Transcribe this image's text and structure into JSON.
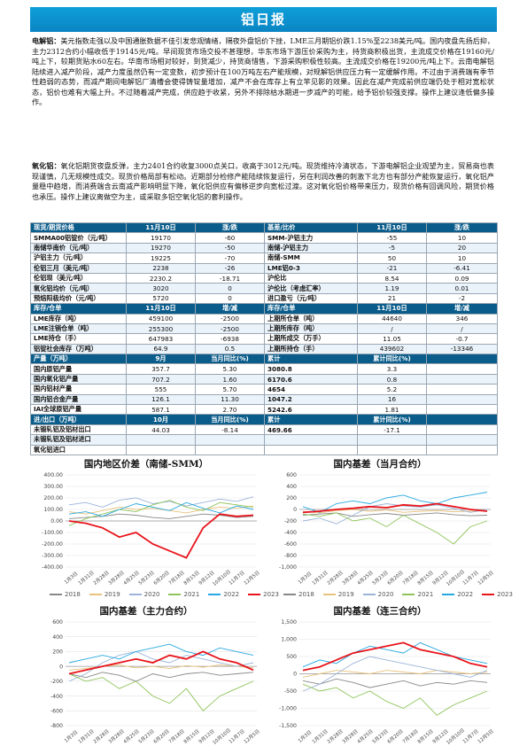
{
  "title": "铝日报",
  "paragraphs": [
    {
      "lead": "电解铝：",
      "body": "美元指数走强以及中国通胀数据不佳引发悲观情绪，隔夜外盘铝价下挫，LME三月期铝价跌1.15%至2238美元/吨。国内夜盘先扬后抑，主力2312合约小幅收低于19145元/吨。早间现货市场交投不甚理想，华东市场下游压价采购为主，持货商积极出货，主流成交价格在19160元/吨上下，较期货贴水60左右。华南市场相对较好，到货减少，持货商惜售，下游采购积极性较高。主流成交价格在19200元/吨上下。云南电解铝陆续进入减产阶段，减产力度虽然仍有一定变数，初步预计在100万吨左右产能规模，对规解铝供应压力有一定缓解作用。不过由于消费端有季节性趋弱的态势，而减产期间电解铝厂清槽会使得铸锭量增加，减产不会在库存上有立竿见影的效果。因此在减产完成前供应端仍处于相对宽松状态，铝价也难有大幅上升。不过随着减产完成，供应趋于收紧，另外不排除枯水期进一步减产的可能，给予铝价较强支撑。操作上建议逢低偏多操作。"
    },
    {
      "lead": "氧化铝：",
      "body": "氧化铝期货夜盘反弹，主力2401合约收复3000点关口，收高于3012元/吨。现货维持冷清状态，下游电解铝企业观望为主，贸易商也表现谨慎，几无规模性成交。现货价格局部有松动。近期部分检修产能陆续恢复运行，另在利润改善的刺激下北方也有部分产能恢复运行，氧化铝产量稳中趋增，而消费端含云南减产影响明显下降，氧化铝供应有偏移逆步向宽松过渡。这对氧化铝价格带来压力，现货价格有回调风险，期货价格也承压。操作上建议离做空为主，或采取多铝空氧化铝的套利操作。"
    }
  ],
  "table_rows": [
    {
      "hdr": true,
      "cells": [
        "现货/期货价格",
        "11月10日",
        "涨/跌",
        "基差/比价",
        "11月10日",
        "涨/跌"
      ]
    },
    {
      "cells": [
        "SMMA00铝锭价（元/吨）",
        "19170",
        "-60",
        "SMM-沪铝主力",
        "-55",
        "10"
      ]
    },
    {
      "cells": [
        "南储华南价（元/吨）",
        "19270",
        "-50",
        "南储-沪铝主力",
        "-5",
        "20"
      ]
    },
    {
      "cells": [
        "沪铝主力（元/吨）",
        "19225",
        "-70",
        "南储-SMM",
        "50",
        "10"
      ]
    },
    {
      "cells": [
        "伦铝三月（美元/吨）",
        "2238",
        "-26",
        "LME铝0-3",
        "-21",
        "-6.41"
      ]
    },
    {
      "cells": [
        "伦铝现（美元/吨）",
        "2230.2",
        "-18.71",
        "沪伦比",
        "8.54",
        "0.09"
      ]
    },
    {
      "cells": [
        "氧化铝均价（元/吨）",
        "3020",
        "0",
        "沪伦比（考虑汇率）",
        "1.19",
        "0.01"
      ]
    },
    {
      "cells": [
        "预焙阳极均价（元/吨）",
        "5720",
        "0",
        "进口盈亏（元/吨）",
        "21",
        "-2"
      ]
    },
    {
      "hdr": true,
      "cells": [
        "库存/仓单",
        "11月10日",
        "增/减",
        "库存/仓单",
        "11月10日",
        "增/减"
      ]
    },
    {
      "cells": [
        "LME库存（吨）",
        "459100",
        "-2500",
        "上期所仓单（吨）",
        "44640",
        "346"
      ]
    },
    {
      "cells": [
        "LME注销仓单（吨）",
        "255300",
        "-2500",
        "上期所库存（吨）",
        "/",
        "/"
      ]
    },
    {
      "cells": [
        "LME持仓（手）",
        "647983",
        "-6938",
        "上期所成交（万手）",
        "11.05",
        "-0.7"
      ]
    },
    {
      "cells": [
        "铝锭社会库存（万吨）",
        "64.9",
        "0.5",
        "上期所持仓（手）",
        "439602",
        "-13346"
      ]
    },
    {
      "hdr": true,
      "cells": [
        "产量（万吨）",
        "9月",
        "当月同比(%)",
        "累计",
        "累计同比(%)",
        ""
      ]
    },
    {
      "cells": [
        "国内原铝产量",
        "357.7",
        "5.30",
        "3080.8",
        "3.3",
        ""
      ]
    },
    {
      "cells": [
        "国内氧化铝产量",
        "707.2",
        "1.60",
        "6170.6",
        "0.8",
        ""
      ]
    },
    {
      "cells": [
        "国内铝材产量",
        "555",
        "5.70",
        "4654",
        "5.2",
        ""
      ]
    },
    {
      "cells": [
        "国内铝合金产量",
        "126.1",
        "11.30",
        "1047.2",
        "16",
        ""
      ]
    },
    {
      "cells": [
        "IAI全球原铝产量",
        "587.1",
        "2.70",
        "5242.6",
        "1.81",
        ""
      ]
    },
    {
      "hdr": true,
      "cells": [
        "进/出口（万吨）",
        "10月",
        "当月同比(%)",
        "累计",
        "累计同比(%)",
        ""
      ]
    },
    {
      "cells": [
        "未锻轧铝及铝材出口",
        "44.03",
        "-8.14",
        "469.66",
        "-17.1",
        ""
      ]
    },
    {
      "cells": [
        "未锻轧铝及铝材进口",
        "",
        "",
        "",
        "",
        ""
      ]
    },
    {
      "cells": [
        "氧化铝进口",
        "",
        "",
        "",
        "",
        ""
      ]
    }
  ],
  "series_colors": {
    "2018": "#888888",
    "2019": "#e8c27c",
    "2020": "#9bb4d8",
    "2021": "#8fc45b",
    "2022": "#27a8e0",
    "2023": "#e8141b"
  },
  "chart_data": [
    {
      "type": "line",
      "title": "国内地区价差（南储-SMM）",
      "ylim": [
        -400,
        400
      ],
      "yticks": [
        "400.00",
        "300.00",
        "200.00",
        "100.00",
        "0.00",
        "-100.00",
        "-200.00",
        "-300.00",
        "-400.00"
      ],
      "x_ticks": [
        "1月3日",
        "1月31日",
        "2月28日",
        "3月28日",
        "4月25日",
        "5月23日",
        "6月20日",
        "7月18日",
        "8月15日",
        "9月12日",
        "10月10日",
        "11月7日",
        "12月5日"
      ],
      "legend": [
        "2018",
        "2019",
        "2020",
        "2021",
        "2022",
        "2023"
      ],
      "series": [
        {
          "name": "2018",
          "values": [
            20,
            30,
            40,
            60,
            50,
            30,
            20,
            40,
            60,
            50,
            30,
            40
          ]
        },
        {
          "name": "2019",
          "values": [
            80,
            60,
            90,
            120,
            100,
            110,
            90,
            70,
            100,
            120,
            110,
            130
          ]
        },
        {
          "name": "2020",
          "values": [
            140,
            160,
            120,
            180,
            200,
            150,
            170,
            130,
            160,
            190,
            170,
            210
          ]
        },
        {
          "name": "2021",
          "values": [
            -40,
            20,
            60,
            100,
            80,
            140,
            180,
            120,
            90,
            160,
            140,
            120
          ]
        },
        {
          "name": "2022",
          "values": [
            60,
            80,
            40,
            100,
            150,
            120,
            90,
            160,
            110,
            70,
            130,
            100
          ]
        },
        {
          "name": "2023",
          "values": [
            0,
            -20,
            -60,
            -140,
            -100,
            -200,
            -260,
            -320,
            -60,
            60,
            40,
            50
          ]
        }
      ]
    },
    {
      "type": "line",
      "title": "国内基差（当月合约）",
      "ylim": [
        -1000,
        600
      ],
      "yticks": [
        "600",
        "400",
        "200",
        "0",
        "-200",
        "-400",
        "-600",
        "-800",
        "-1,000"
      ],
      "x_ticks": [
        "1月3日",
        "1月31日",
        "2月28日",
        "3月28日",
        "4月25日",
        "5月23日",
        "6月20日",
        "7月18日",
        "8月15日",
        "9月12日",
        "10月10日",
        "11月7日",
        "12月5日"
      ],
      "legend": [
        "2018",
        "2019",
        "2020",
        "2021",
        "2022",
        "2023"
      ],
      "series": [
        {
          "name": "2018",
          "values": [
            -100,
            -80,
            -60,
            -120,
            -90,
            -70,
            -100,
            -80,
            -60,
            -90,
            -110,
            -100
          ]
        },
        {
          "name": "2019",
          "values": [
            -40,
            -60,
            -20,
            0,
            -30,
            -10,
            -50,
            -30,
            -20,
            -40,
            -30,
            -20
          ]
        },
        {
          "name": "2020",
          "values": [
            -200,
            -150,
            -250,
            -100,
            50,
            100,
            60,
            40,
            80,
            20,
            -50,
            0
          ]
        },
        {
          "name": "2021",
          "values": [
            -80,
            -120,
            -60,
            -200,
            -150,
            -300,
            -100,
            -250,
            -400,
            -600,
            -300,
            -200
          ]
        },
        {
          "name": "2022",
          "values": [
            50,
            -50,
            100,
            150,
            100,
            200,
            250,
            150,
            100,
            200,
            250,
            300
          ]
        },
        {
          "name": "2023",
          "values": [
            -50,
            -30,
            0,
            20,
            50,
            30,
            80,
            60,
            100,
            50,
            0,
            -30
          ]
        }
      ]
    },
    {
      "type": "line",
      "title": "国内基差（主力合约）",
      "ylim": [
        -800,
        600
      ],
      "yticks": [
        "600",
        "400",
        "200",
        "0",
        "-200",
        "-400",
        "-600",
        "-800"
      ],
      "x_ticks": [
        "1月3日",
        "1月31日",
        "2月28日",
        "3月28日",
        "4月25日",
        "5月23日",
        "6月20日",
        "7月18日",
        "8月15日",
        "9月12日",
        "10月10日",
        "11月7日",
        "12月5日"
      ],
      "legend": [],
      "series": [
        {
          "name": "2018",
          "values": [
            -100,
            -150,
            -80,
            -120,
            -200,
            -100,
            -150,
            -100,
            -80,
            -120,
            -100,
            -80
          ]
        },
        {
          "name": "2019",
          "values": [
            -50,
            -30,
            0,
            20,
            -20,
            0,
            -30,
            10,
            -10,
            20,
            0,
            -20
          ]
        },
        {
          "name": "2020",
          "values": [
            -200,
            -100,
            50,
            150,
            200,
            100,
            50,
            150,
            100,
            50,
            0,
            50
          ]
        },
        {
          "name": "2021",
          "values": [
            -100,
            -200,
            -150,
            -300,
            -200,
            -400,
            -500,
            -300,
            -600,
            -400,
            -300,
            -200
          ]
        },
        {
          "name": "2022",
          "values": [
            50,
            100,
            150,
            100,
            200,
            250,
            300,
            200,
            150,
            250,
            200,
            150
          ]
        },
        {
          "name": "2023",
          "values": [
            -100,
            -50,
            0,
            50,
            100,
            50,
            150,
            100,
            200,
            100,
            50,
            -50
          ]
        }
      ]
    },
    {
      "type": "line",
      "title": "国内基差（连三合约）",
      "ylim": [
        -1500,
        1500
      ],
      "yticks": [
        "1,500",
        "1,000",
        "500",
        "0",
        "-500",
        "-1,000",
        "-1,500"
      ],
      "x_ticks": [
        "1月3日",
        "1月31日",
        "2月28日",
        "3月28日",
        "4月25日",
        "5月23日",
        "6月20日",
        "7月18日",
        "8月15日",
        "9月12日",
        "10月10日",
        "11月7日",
        "12月5日"
      ],
      "legend": [],
      "series": [
        {
          "name": "2018",
          "values": [
            -200,
            -300,
            -150,
            -250,
            -400,
            -300,
            -200,
            -350,
            -250,
            -300,
            -200,
            -250
          ]
        },
        {
          "name": "2019",
          "values": [
            -100,
            0,
            100,
            50,
            0,
            100,
            50,
            0,
            100,
            50,
            0,
            50
          ]
        },
        {
          "name": "2020",
          "values": [
            -500,
            -300,
            0,
            300,
            500,
            400,
            300,
            200,
            100,
            0,
            -100,
            100
          ]
        },
        {
          "name": "2021",
          "values": [
            -300,
            -500,
            -400,
            -700,
            -500,
            -800,
            -1000,
            -700,
            -1200,
            -900,
            -700,
            -500
          ]
        },
        {
          "name": "2022",
          "values": [
            200,
            400,
            300,
            600,
            800,
            700,
            600,
            900,
            700,
            500,
            400,
            300
          ]
        },
        {
          "name": "2023",
          "values": [
            100,
            200,
            400,
            600,
            700,
            800,
            900,
            700,
            600,
            500,
            300,
            200
          ]
        }
      ]
    }
  ]
}
